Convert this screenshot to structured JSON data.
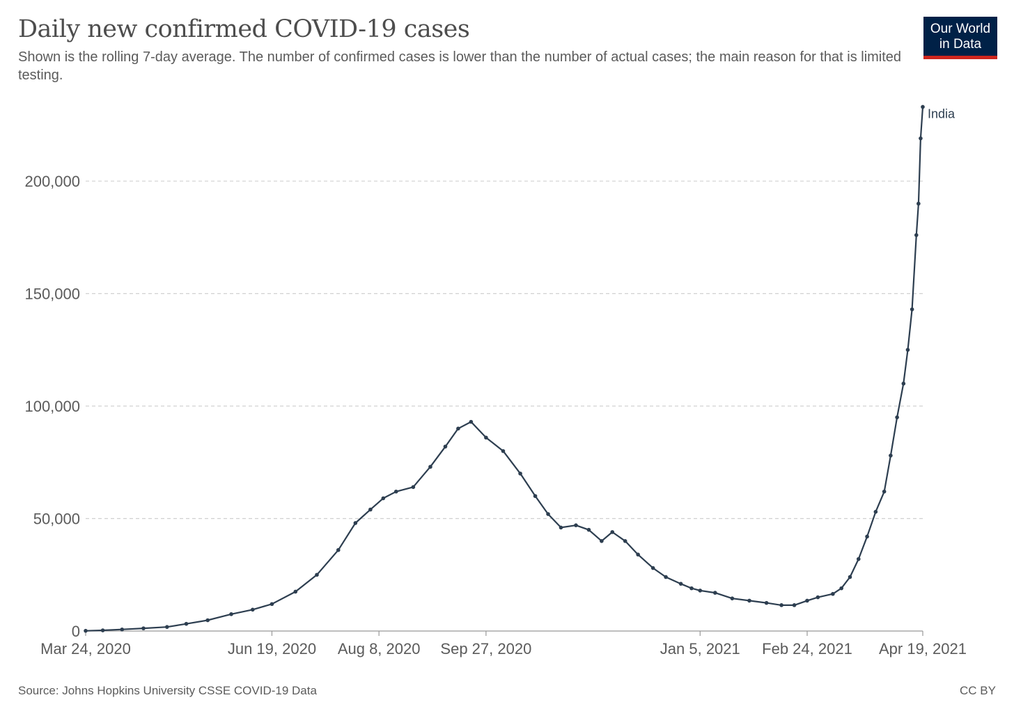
{
  "header": {
    "title": "Daily new confirmed COVID-19 cases",
    "subtitle": "Shown is the rolling 7-day average. The number of confirmed cases is lower than the number of actual cases; the main reason for that is limited testing."
  },
  "logo": {
    "line1": "Our World",
    "line2": "in Data",
    "bg_color": "#002147",
    "accent_color": "#ce261e"
  },
  "footer": {
    "source": "Source: Johns Hopkins University CSSE COVID-19 Data",
    "license": "CC BY"
  },
  "chart_data": {
    "type": "line",
    "title": "Daily new confirmed COVID-19 cases",
    "xlabel": "",
    "ylabel": "",
    "ylim": [
      0,
      235000
    ],
    "xlim": [
      "2020-03-24",
      "2021-04-19"
    ],
    "y_ticks": [
      0,
      50000,
      100000,
      150000,
      200000
    ],
    "y_tick_labels": [
      "0",
      "50,000",
      "100,000",
      "150,000",
      "200,000"
    ],
    "x_ticks": [
      "2020-03-24",
      "2020-06-19",
      "2020-08-08",
      "2020-09-27",
      "2021-01-05",
      "2021-02-24",
      "2021-04-19"
    ],
    "x_tick_labels": [
      "Mar 24, 2020",
      "Jun 19, 2020",
      "Aug 8, 2020",
      "Sep 27, 2020",
      "Jan 5, 2021",
      "Feb 24, 2021",
      "Apr 19, 2021"
    ],
    "grid": "horizontal dashed",
    "line_color": "#2d3e50",
    "series": [
      {
        "name": "India",
        "points": [
          [
            "2020-03-24",
            100
          ],
          [
            "2020-04-01",
            300
          ],
          [
            "2020-04-10",
            700
          ],
          [
            "2020-04-20",
            1200
          ],
          [
            "2020-05-01",
            1800
          ],
          [
            "2020-05-10",
            3200
          ],
          [
            "2020-05-20",
            4800
          ],
          [
            "2020-05-31",
            7500
          ],
          [
            "2020-06-10",
            9500
          ],
          [
            "2020-06-19",
            12000
          ],
          [
            "2020-06-30",
            17500
          ],
          [
            "2020-07-10",
            25000
          ],
          [
            "2020-07-20",
            36000
          ],
          [
            "2020-07-28",
            48000
          ],
          [
            "2020-08-04",
            54000
          ],
          [
            "2020-08-10",
            59000
          ],
          [
            "2020-08-16",
            62000
          ],
          [
            "2020-08-24",
            64000
          ],
          [
            "2020-09-01",
            73000
          ],
          [
            "2020-09-08",
            82000
          ],
          [
            "2020-09-14",
            90000
          ],
          [
            "2020-09-20",
            93000
          ],
          [
            "2020-09-27",
            86000
          ],
          [
            "2020-10-05",
            80000
          ],
          [
            "2020-10-13",
            70000
          ],
          [
            "2020-10-20",
            60000
          ],
          [
            "2020-10-26",
            52000
          ],
          [
            "2020-11-01",
            46000
          ],
          [
            "2020-11-08",
            47000
          ],
          [
            "2020-11-14",
            45000
          ],
          [
            "2020-11-20",
            40000
          ],
          [
            "2020-11-25",
            44000
          ],
          [
            "2020-12-01",
            40000
          ],
          [
            "2020-12-07",
            34000
          ],
          [
            "2020-12-14",
            28000
          ],
          [
            "2020-12-20",
            24000
          ],
          [
            "2020-12-27",
            21000
          ],
          [
            "2021-01-01",
            19000
          ],
          [
            "2021-01-05",
            18000
          ],
          [
            "2021-01-12",
            17000
          ],
          [
            "2021-01-20",
            14500
          ],
          [
            "2021-01-28",
            13500
          ],
          [
            "2021-02-05",
            12500
          ],
          [
            "2021-02-12",
            11500
          ],
          [
            "2021-02-18",
            11500
          ],
          [
            "2021-02-24",
            13500
          ],
          [
            "2021-03-01",
            15000
          ],
          [
            "2021-03-08",
            16500
          ],
          [
            "2021-03-12",
            19000
          ],
          [
            "2021-03-16",
            24000
          ],
          [
            "2021-03-20",
            32000
          ],
          [
            "2021-03-24",
            42000
          ],
          [
            "2021-03-28",
            53000
          ],
          [
            "2021-04-01",
            62000
          ],
          [
            "2021-04-04",
            78000
          ],
          [
            "2021-04-07",
            95000
          ],
          [
            "2021-04-10",
            110000
          ],
          [
            "2021-04-12",
            125000
          ],
          [
            "2021-04-14",
            143000
          ],
          [
            "2021-04-16",
            176000
          ],
          [
            "2021-04-17",
            190000
          ],
          [
            "2021-04-18",
            219000
          ],
          [
            "2021-04-19",
            233000
          ]
        ]
      }
    ]
  }
}
